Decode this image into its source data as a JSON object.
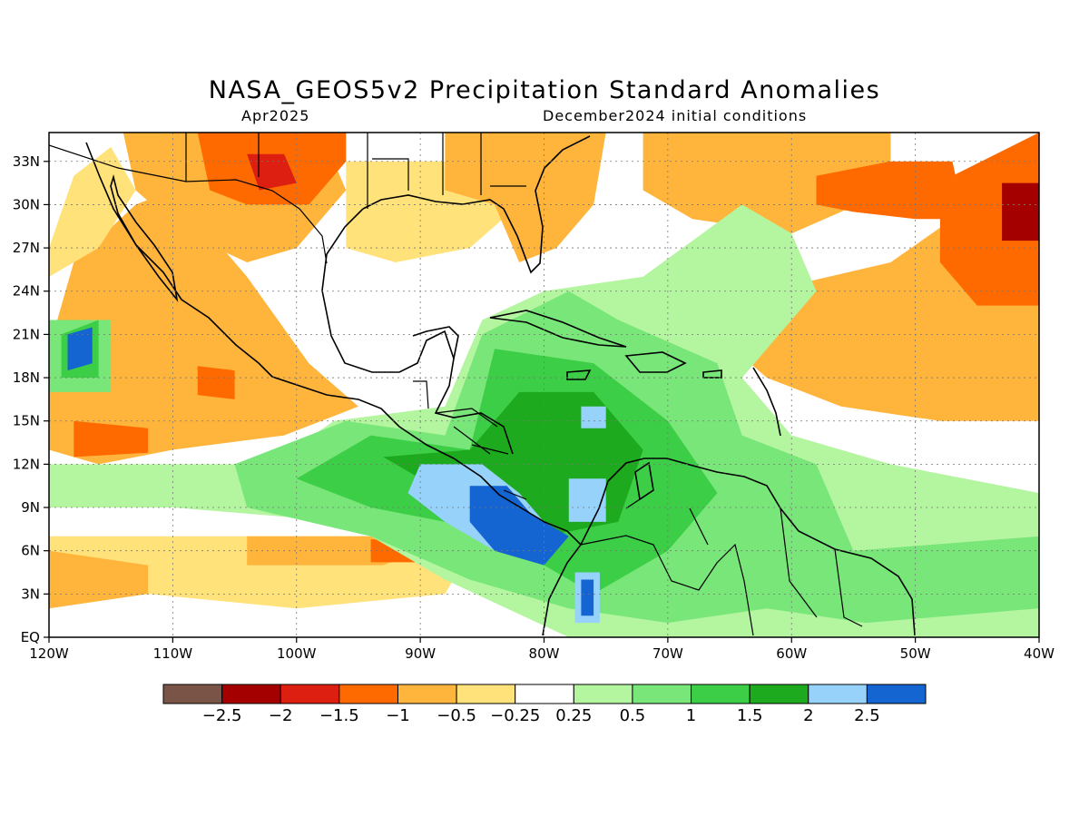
{
  "title": "NASA_GEOS5v2 Precipitation Standard Anomalies",
  "subtitle_left": "Apr2025",
  "subtitle_right": "December2024 initial conditions",
  "map": {
    "lon_range": [
      -120,
      -40
    ],
    "lat_range": [
      0,
      35
    ],
    "x_ticks": [
      {
        "lon": -120,
        "label": "120W"
      },
      {
        "lon": -110,
        "label": "110W"
      },
      {
        "lon": -100,
        "label": "100W"
      },
      {
        "lon": -90,
        "label": "90W"
      },
      {
        "lon": -80,
        "label": "80W"
      },
      {
        "lon": -70,
        "label": "70W"
      },
      {
        "lon": -60,
        "label": "60W"
      },
      {
        "lon": -50,
        "label": "50W"
      },
      {
        "lon": -40,
        "label": "40W"
      }
    ],
    "y_ticks": [
      {
        "lat": 0,
        "label": "EQ"
      },
      {
        "lat": 3,
        "label": "3N"
      },
      {
        "lat": 6,
        "label": "6N"
      },
      {
        "lat": 9,
        "label": "9N"
      },
      {
        "lat": 12,
        "label": "12N"
      },
      {
        "lat": 15,
        "label": "15N"
      },
      {
        "lat": 18,
        "label": "18N"
      },
      {
        "lat": 21,
        "label": "21N"
      },
      {
        "lat": 24,
        "label": "24N"
      },
      {
        "lat": 27,
        "label": "27N"
      },
      {
        "lat": 30,
        "label": "30N"
      },
      {
        "lat": 33,
        "label": "33N"
      }
    ]
  },
  "colorbar": {
    "colors": [
      "#7a5446",
      "#a40000",
      "#dc1f10",
      "#ff6a00",
      "#ffb43c",
      "#ffe27a",
      "#ffffff",
      "#b4f5a0",
      "#78e678",
      "#3cce46",
      "#1eaa1e",
      "#96d2fa",
      "#1464d2"
    ],
    "labels": [
      "-2.5",
      "-2",
      "-1.5",
      "-1",
      "-0.5",
      "-0.25",
      "0.25",
      "0.5",
      "1",
      "1.5",
      "2",
      "2.5"
    ]
  },
  "regions": [
    {
      "name": "e-pacific-dry",
      "color": "#ffb43c",
      "points": [
        [
          -120,
          20
        ],
        [
          -118,
          26
        ],
        [
          -113,
          30
        ],
        [
          -110,
          31
        ],
        [
          -104,
          25
        ],
        [
          -99,
          19
        ],
        [
          -95,
          16
        ],
        [
          -101,
          14
        ],
        [
          -110,
          13
        ],
        [
          -116,
          12
        ],
        [
          -120,
          13
        ]
      ]
    },
    {
      "name": "baja-west-pale",
      "color": "#ffe27a",
      "points": [
        [
          -120,
          27
        ],
        [
          -118,
          32
        ],
        [
          -115,
          34
        ],
        [
          -113,
          31
        ],
        [
          -116,
          27
        ],
        [
          -120,
          25
        ]
      ]
    },
    {
      "name": "mexico-dry",
      "color": "#ffb43c",
      "points": [
        [
          -114,
          35
        ],
        [
          -98,
          35
        ],
        [
          -96,
          31
        ],
        [
          -100,
          27
        ],
        [
          -104,
          26
        ],
        [
          -109,
          28
        ],
        [
          -113,
          31
        ]
      ]
    },
    {
      "name": "sw-us-wet-dark",
      "color": "#ff6a00",
      "points": [
        [
          -108,
          35
        ],
        [
          -96,
          35
        ],
        [
          -96,
          33
        ],
        [
          -99,
          30
        ],
        [
          -104,
          30
        ],
        [
          -107,
          31
        ]
      ]
    },
    {
      "name": "sw-us-core",
      "color": "#dc1f10",
      "points": [
        [
          -104,
          33.5
        ],
        [
          -101,
          33.5
        ],
        [
          -100,
          31.5
        ],
        [
          -103,
          31
        ]
      ]
    },
    {
      "name": "gulf-north-dry",
      "color": "#ffe27a",
      "points": [
        [
          -96,
          33
        ],
        [
          -84,
          33
        ],
        [
          -82,
          30
        ],
        [
          -86,
          27
        ],
        [
          -92,
          26
        ],
        [
          -96,
          27
        ]
      ]
    },
    {
      "name": "se-us-dry",
      "color": "#ffb43c",
      "points": [
        [
          -88,
          35
        ],
        [
          -75,
          35
        ],
        [
          -76,
          30
        ],
        [
          -79,
          27
        ],
        [
          -82,
          26
        ],
        [
          -84,
          30
        ],
        [
          -88,
          31
        ]
      ]
    },
    {
      "name": "w-atl-dry",
      "color": "#ffb43c",
      "points": [
        [
          -72,
          35
        ],
        [
          -52,
          35
        ],
        [
          -52,
          31
        ],
        [
          -60,
          28
        ],
        [
          -68,
          29
        ],
        [
          -72,
          31
        ]
      ]
    },
    {
      "name": "sub-atl-dry",
      "color": "#ffb43c",
      "points": [
        [
          -62,
          24
        ],
        [
          -52,
          26
        ],
        [
          -47,
          29
        ],
        [
          -40,
          30
        ],
        [
          -40,
          15
        ],
        [
          -48,
          15
        ],
        [
          -56,
          16
        ],
        [
          -62,
          18
        ],
        [
          -66,
          21
        ]
      ]
    },
    {
      "name": "ne-atl-dark",
      "color": "#ff6a00",
      "points": [
        [
          -58,
          32
        ],
        [
          -52,
          33
        ],
        [
          -47,
          33
        ],
        [
          -46,
          29
        ],
        [
          -50,
          29
        ],
        [
          -55,
          29.5
        ],
        [
          -58,
          30
        ]
      ]
    },
    {
      "name": "far-ne-atl",
      "color": "#ff6a00",
      "points": [
        [
          -47,
          32
        ],
        [
          -40,
          35
        ],
        [
          -40,
          23
        ],
        [
          -45,
          23
        ],
        [
          -48,
          26
        ],
        [
          -48,
          29
        ]
      ]
    },
    {
      "name": "far-ne-core",
      "color": "#a40000",
      "points": [
        [
          -43,
          31.5
        ],
        [
          -40,
          31.5
        ],
        [
          -40,
          27.5
        ],
        [
          -43,
          27.5
        ]
      ]
    },
    {
      "name": "sw-pacific-dry",
      "color": "#ffe27a",
      "points": [
        [
          -120,
          7
        ],
        [
          -90,
          7
        ],
        [
          -86,
          6
        ],
        [
          -88,
          3
        ],
        [
          -100,
          2
        ],
        [
          -112,
          3
        ],
        [
          -120,
          3
        ]
      ]
    },
    {
      "name": "sw-pac-orange",
      "color": "#ffb43c",
      "points": [
        [
          -120,
          6
        ],
        [
          -112,
          5
        ],
        [
          -112,
          3
        ],
        [
          -120,
          2
        ]
      ]
    },
    {
      "name": "sw-pac-orange2",
      "color": "#ffb43c",
      "points": [
        [
          -104,
          7
        ],
        [
          -93,
          7
        ],
        [
          -90,
          6
        ],
        [
          -93,
          5
        ],
        [
          -104,
          5
        ]
      ]
    },
    {
      "name": "sw-pac-red",
      "color": "#ff6a00",
      "points": [
        [
          -94,
          6.8
        ],
        [
          -89,
          6.6
        ],
        [
          -89,
          5.2
        ],
        [
          -94,
          5.2
        ]
      ]
    },
    {
      "name": "sw-pac-core",
      "color": "#dc1f10",
      "points": [
        [
          -91.4,
          6.3
        ],
        [
          -90.6,
          6.3
        ],
        [
          -90.6,
          5.7
        ],
        [
          -91.4,
          5.7
        ]
      ]
    },
    {
      "name": "mid-pac-dark-a",
      "color": "#ff6a00",
      "points": [
        [
          -118,
          15
        ],
        [
          -112,
          14.5
        ],
        [
          -112,
          12.8
        ],
        [
          -118,
          12.5
        ]
      ]
    },
    {
      "name": "mid-pac-dark-b",
      "color": "#ff6a00",
      "points": [
        [
          -108,
          18.8
        ],
        [
          -105,
          18.5
        ],
        [
          -105,
          16.5
        ],
        [
          -108,
          16.8
        ]
      ]
    },
    {
      "name": "pac-hurricane-wet",
      "color": "#78e678",
      "points": [
        [
          -120,
          22
        ],
        [
          -115,
          22
        ],
        [
          -115,
          17
        ],
        [
          -120,
          17
        ]
      ]
    },
    {
      "name": "pac-hurricane-wet2",
      "color": "#3cce46",
      "points": [
        [
          -119,
          21
        ],
        [
          -116,
          22
        ],
        [
          -116,
          18
        ],
        [
          -119,
          18
        ]
      ]
    },
    {
      "name": "pac-hurricane-core",
      "color": "#1464d2",
      "points": [
        [
          -118.5,
          21
        ],
        [
          -116.5,
          21.5
        ],
        [
          -116.5,
          19
        ],
        [
          -118.5,
          18.5
        ]
      ]
    },
    {
      "name": "central-am-wet-light",
      "color": "#b4f5a0",
      "points": [
        [
          -120,
          12
        ],
        [
          -102,
          12
        ],
        [
          -97,
          15
        ],
        [
          -88,
          16
        ],
        [
          -85,
          22
        ],
        [
          -80,
          24
        ],
        [
          -72,
          25
        ],
        [
          -64,
          30
        ],
        [
          -60,
          28
        ],
        [
          -58,
          24
        ],
        [
          -64,
          18
        ],
        [
          -60,
          14
        ],
        [
          -52,
          12
        ],
        [
          -40,
          10
        ],
        [
          -40,
          0
        ],
        [
          -78,
          0
        ],
        [
          -88,
          4
        ],
        [
          -96,
          8
        ],
        [
          -110,
          9
        ],
        [
          -120,
          9
        ]
      ]
    },
    {
      "name": "central-am-wet-mid",
      "color": "#78e678",
      "points": [
        [
          -105,
          12
        ],
        [
          -96,
          15
        ],
        [
          -88,
          14
        ],
        [
          -85,
          21
        ],
        [
          -78,
          24
        ],
        [
          -74,
          22
        ],
        [
          -66,
          19
        ],
        [
          -64,
          14
        ],
        [
          -58,
          12
        ],
        [
          -55,
          6
        ],
        [
          -40,
          7
        ],
        [
          -40,
          2
        ],
        [
          -54,
          1
        ],
        [
          -62,
          2
        ],
        [
          -70,
          1
        ],
        [
          -78,
          2
        ],
        [
          -86,
          4
        ],
        [
          -94,
          7
        ],
        [
          -104,
          9
        ]
      ]
    },
    {
      "name": "central-am-wet-dark",
      "color": "#3cce46",
      "points": [
        [
          -100,
          11
        ],
        [
          -94,
          14
        ],
        [
          -86,
          13
        ],
        [
          -84,
          20
        ],
        [
          -76,
          19
        ],
        [
          -70,
          15
        ],
        [
          -66,
          10
        ],
        [
          -70,
          6
        ],
        [
          -76,
          3
        ],
        [
          -82,
          6
        ],
        [
          -88,
          8
        ],
        [
          -94,
          9
        ]
      ]
    },
    {
      "name": "central-am-wet-darker",
      "color": "#1eaa1e",
      "points": [
        [
          -93,
          12.5
        ],
        [
          -86,
          13
        ],
        [
          -82,
          17
        ],
        [
          -76,
          17
        ],
        [
          -72,
          13
        ],
        [
          -74,
          8
        ],
        [
          -80,
          7
        ],
        [
          -86,
          9
        ]
      ]
    },
    {
      "name": "central-am-lightblue",
      "color": "#96d2fa",
      "points": [
        [
          -90,
          12
        ],
        [
          -85,
          12
        ],
        [
          -82,
          10
        ],
        [
          -80,
          8
        ],
        [
          -84,
          6
        ],
        [
          -88,
          8
        ],
        [
          -91,
          10
        ]
      ]
    },
    {
      "name": "central-am-blue",
      "color": "#1464d2",
      "points": [
        [
          -86,
          10.5
        ],
        [
          -83,
          10.5
        ],
        [
          -81,
          8.5
        ],
        [
          -78,
          7
        ],
        [
          -80,
          5
        ],
        [
          -84,
          6
        ],
        [
          -86,
          8
        ]
      ]
    },
    {
      "name": "central-am-blue-east",
      "color": "#96d2fa",
      "points": [
        [
          -78,
          11
        ],
        [
          -75,
          11
        ],
        [
          -75,
          8
        ],
        [
          -78,
          8
        ]
      ]
    },
    {
      "name": "colombia-lightblue",
      "color": "#96d2fa",
      "points": [
        [
          -77.5,
          4.5
        ],
        [
          -75.5,
          4.5
        ],
        [
          -75.5,
          1
        ],
        [
          -77.5,
          1
        ]
      ]
    },
    {
      "name": "colombia-blue",
      "color": "#1464d2",
      "points": [
        [
          -77,
          4
        ],
        [
          -76,
          4
        ],
        [
          -76,
          1.5
        ],
        [
          -77,
          1.5
        ]
      ]
    },
    {
      "name": "caribbean-lightblue",
      "color": "#96d2fa",
      "points": [
        [
          -77,
          16
        ],
        [
          -75,
          16
        ],
        [
          -75,
          14.5
        ],
        [
          -77,
          14.5
        ]
      ]
    }
  ]
}
